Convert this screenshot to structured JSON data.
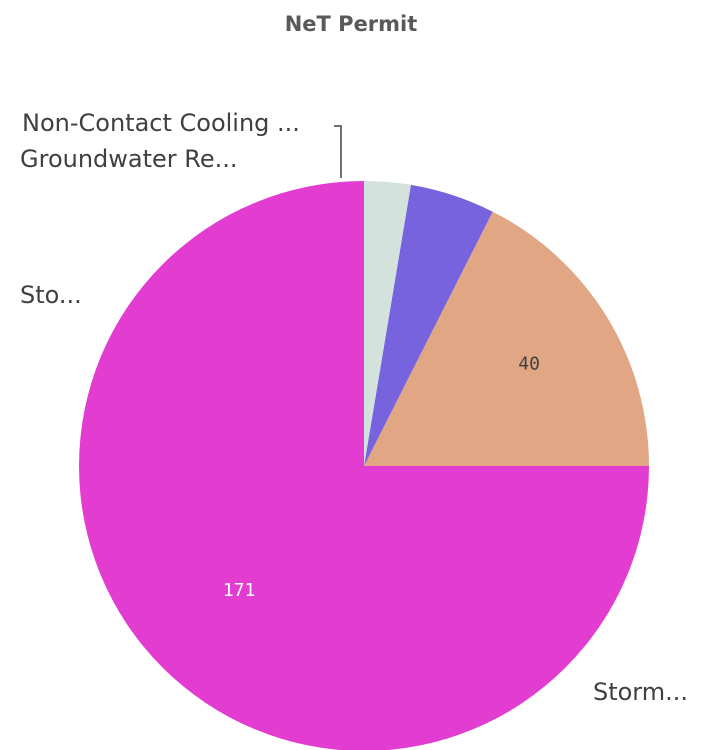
{
  "chart_data": {
    "type": "pie",
    "title": "NeT Permit",
    "categories": [
      "Storm...",
      "Sto...",
      "Groundwater Re...",
      "Non-Contact Cooling ..."
    ],
    "values": [
      171,
      40,
      11,
      6
    ],
    "colors": [
      "#e23cd1",
      "#e1a784",
      "#7763de",
      "#d3e2dd"
    ],
    "value_labels": [
      "171",
      "40",
      "",
      ""
    ],
    "value_label_colors": [
      "#ffffff",
      "#404040",
      "#404040",
      "#404040"
    ],
    "start_angle": "12 o'clock",
    "direction": "counterclockwise",
    "legend": "none"
  }
}
